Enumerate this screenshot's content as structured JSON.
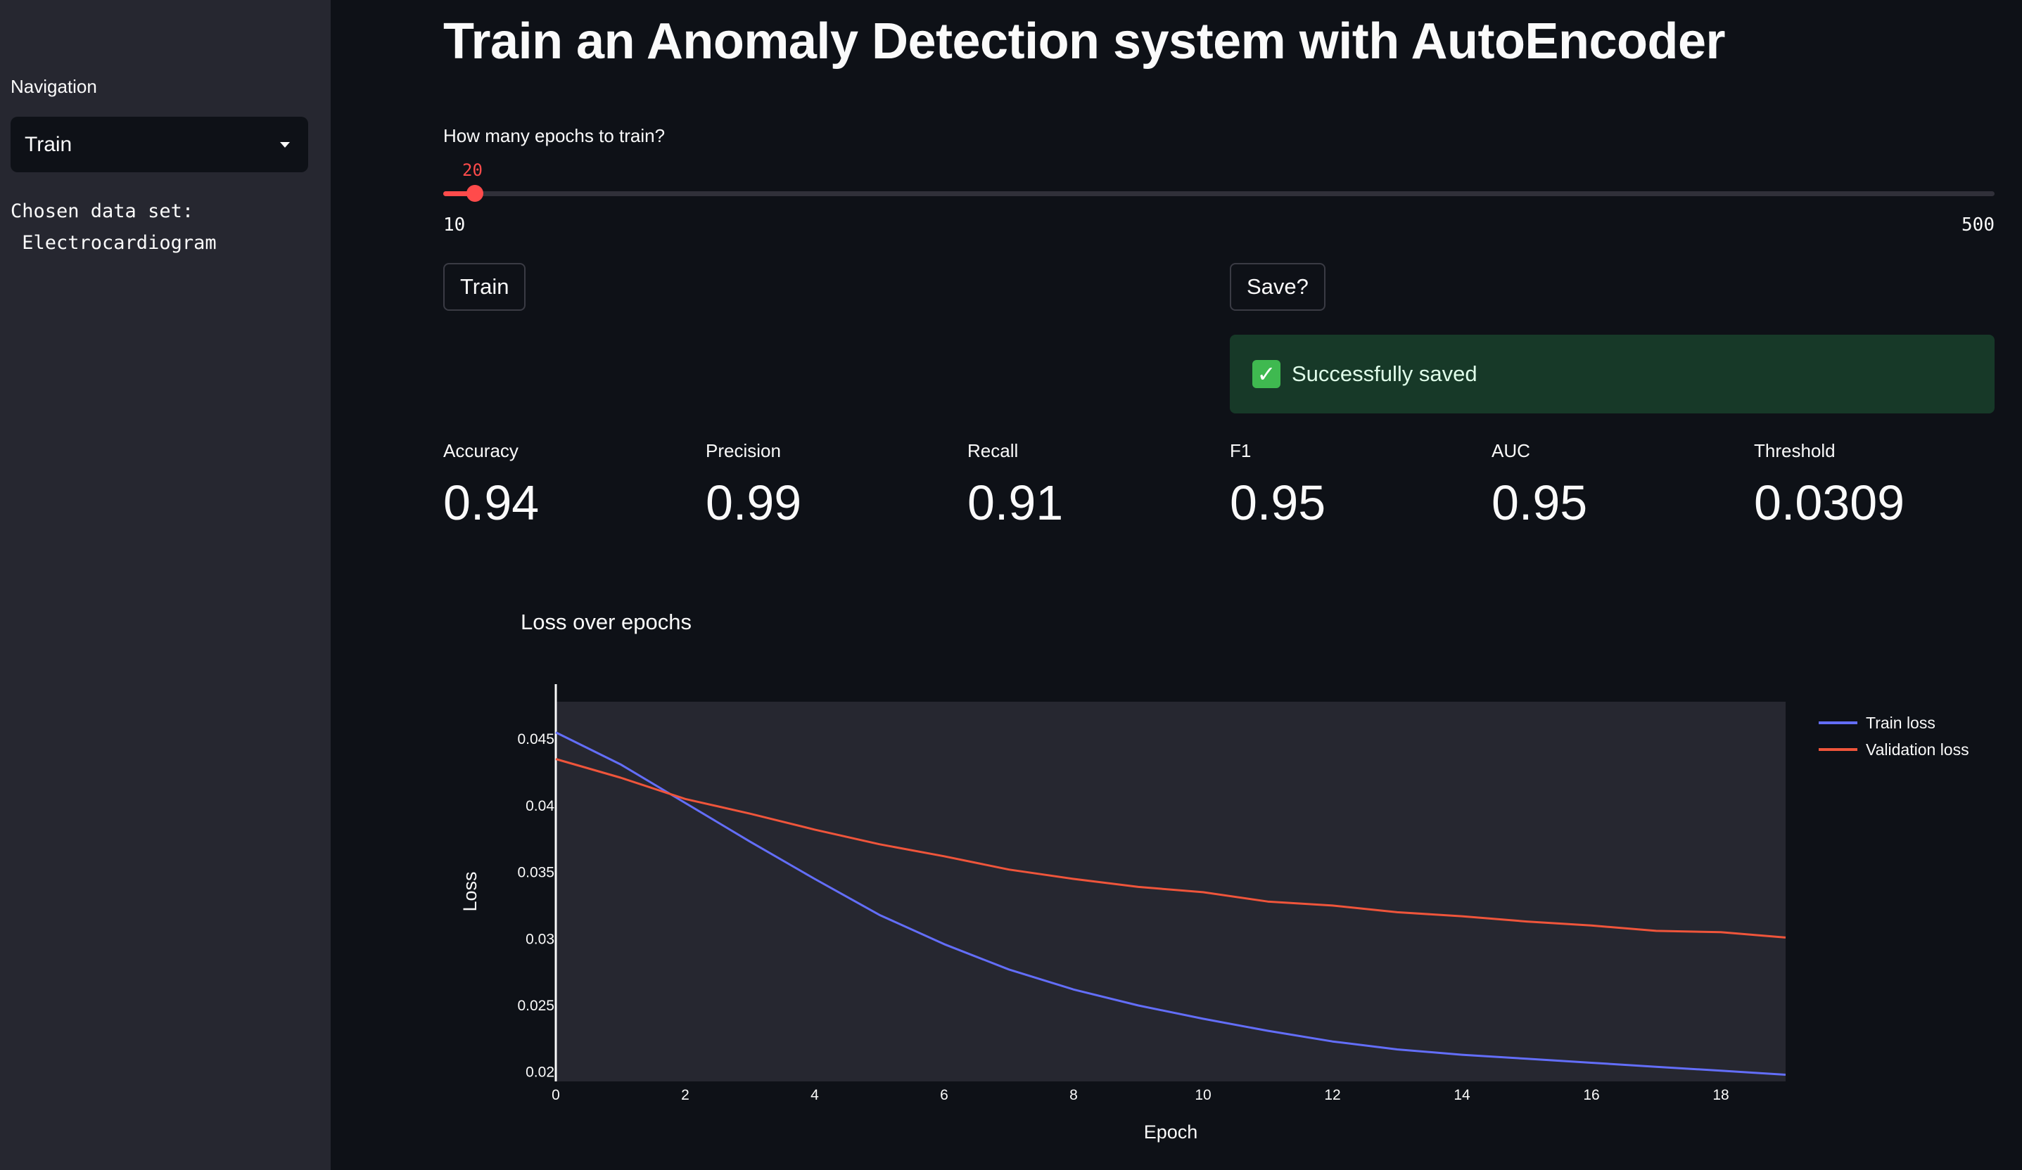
{
  "sidebar": {
    "nav_label": "Navigation",
    "nav_selected": "Train",
    "chosen_label": "Chosen data set:",
    "chosen_value": " Electrocardiogram"
  },
  "main": {
    "title": "Train an Anomaly Detection system with AutoEncoder",
    "slider": {
      "label": "How many epochs to train?",
      "value": 20,
      "min": 10,
      "max": 500,
      "value_label": "20",
      "min_label": "10",
      "max_label": "500"
    },
    "train_button": "Train",
    "save_button": "Save?",
    "success_text": "Successfully saved",
    "metrics": [
      {
        "label": "Accuracy",
        "value": "0.94"
      },
      {
        "label": "Precision",
        "value": "0.99"
      },
      {
        "label": "Recall",
        "value": "0.91"
      },
      {
        "label": "F1",
        "value": "0.95"
      },
      {
        "label": "AUC",
        "value": "0.95"
      },
      {
        "label": "Threshold",
        "value": "0.0309"
      }
    ]
  },
  "colors": {
    "accent": "#ff4b4b",
    "train_line": "#636efa",
    "validation_line": "#ef553b",
    "success_bg": "#173928"
  },
  "chart_data": {
    "type": "line",
    "title": "Loss over epochs",
    "xlabel": "Epoch",
    "ylabel": "Loss",
    "xlim": [
      0,
      19
    ],
    "ylim": [
      0.0193,
      0.0478
    ],
    "xticks": [
      0,
      2,
      4,
      6,
      8,
      10,
      12,
      14,
      16,
      18
    ],
    "yticks": [
      0.02,
      0.025,
      0.03,
      0.035,
      0.04,
      0.045
    ],
    "ytick_labels": [
      "0.02",
      "0.025",
      "0.03",
      "0.035",
      "0.04",
      "0.045"
    ],
    "legend_position": "top-right",
    "x": [
      0,
      1,
      2,
      3,
      4,
      5,
      6,
      7,
      8,
      9,
      10,
      11,
      12,
      13,
      14,
      15,
      16,
      17,
      18,
      19
    ],
    "series": [
      {
        "name": "Train loss",
        "color": "#636efa",
        "values": [
          0.0455,
          0.0431,
          0.0402,
          0.0373,
          0.0345,
          0.0318,
          0.0296,
          0.0277,
          0.0262,
          0.025,
          0.024,
          0.0231,
          0.0223,
          0.0217,
          0.0213,
          0.021,
          0.0207,
          0.0204,
          0.0201,
          0.0198
        ]
      },
      {
        "name": "Validation loss",
        "color": "#ef553b",
        "values": [
          0.0435,
          0.0421,
          0.0405,
          0.0394,
          0.0382,
          0.0371,
          0.0362,
          0.0352,
          0.0345,
          0.0339,
          0.0335,
          0.0328,
          0.0325,
          0.032,
          0.0317,
          0.0313,
          0.031,
          0.0306,
          0.0305,
          0.0301
        ]
      }
    ]
  }
}
